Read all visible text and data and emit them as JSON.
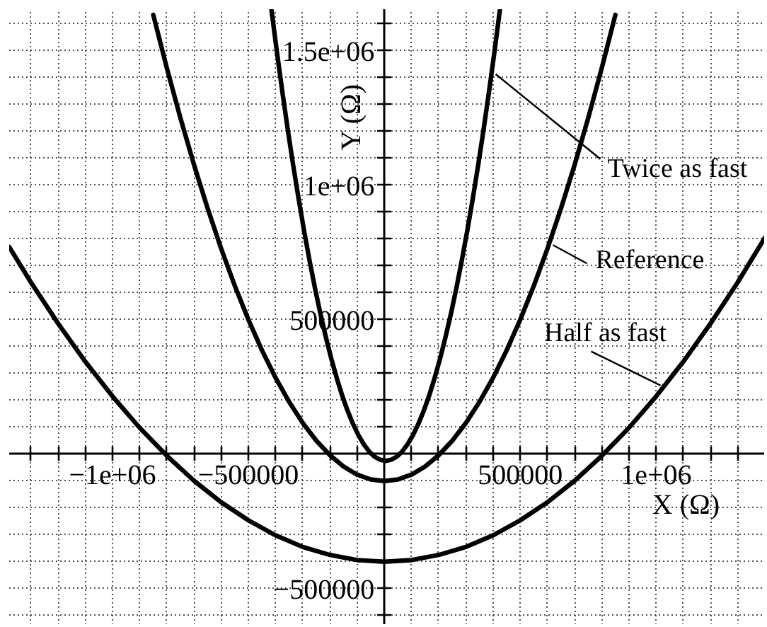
{
  "chart_data": {
    "type": "line",
    "xlabel": "X (Ω)",
    "ylabel": "Y (Ω)",
    "xlim": [
      -1380000,
      1400000
    ],
    "ylim": [
      -635000,
      1655000
    ],
    "xticks": [
      {
        "value": -1300000,
        "label": null
      },
      {
        "value": -1200000,
        "label": null
      },
      {
        "value": -1100000,
        "label": null
      },
      {
        "value": -1000000,
        "label": "−1e+06"
      },
      {
        "value": -900000,
        "label": null
      },
      {
        "value": -800000,
        "label": null
      },
      {
        "value": -700000,
        "label": null
      },
      {
        "value": -600000,
        "label": null
      },
      {
        "value": -500000,
        "label": "−500000"
      },
      {
        "value": -400000,
        "label": null
      },
      {
        "value": -300000,
        "label": null
      },
      {
        "value": -200000,
        "label": null
      },
      {
        "value": -100000,
        "label": null
      },
      {
        "value": 100000,
        "label": null
      },
      {
        "value": 200000,
        "label": null
      },
      {
        "value": 300000,
        "label": null
      },
      {
        "value": 400000,
        "label": null
      },
      500000,
      {
        "value": 600000,
        "label": null
      },
      {
        "value": 700000,
        "label": null
      },
      {
        "value": 800000,
        "label": null
      },
      {
        "value": 900000,
        "label": null
      },
      {
        "value": 1000000,
        "label": "1e+06"
      },
      {
        "value": 1100000,
        "label": null
      },
      {
        "value": 1200000,
        "label": null
      },
      {
        "value": 1300000,
        "label": null
      }
    ],
    "yticks": [
      {
        "value": -600000,
        "label": null
      },
      {
        "value": -500000,
        "label": "−500000"
      },
      {
        "value": -400000,
        "label": null
      },
      {
        "value": -300000,
        "label": null
      },
      {
        "value": -200000,
        "label": null
      },
      {
        "value": -100000,
        "label": null
      },
      {
        "value": 100000,
        "label": null
      },
      {
        "value": 200000,
        "label": null
      },
      {
        "value": 300000,
        "label": null
      },
      {
        "value": 400000,
        "label": null
      },
      500000,
      {
        "value": 600000,
        "label": null
      },
      {
        "value": 700000,
        "label": null
      },
      {
        "value": 800000,
        "label": null
      },
      {
        "value": 900000,
        "label": null
      },
      {
        "value": 1000000,
        "label": "1e+06"
      },
      {
        "value": 1100000,
        "label": null
      },
      {
        "value": 1200000,
        "label": null
      },
      {
        "value": 1300000,
        "label": null
      },
      {
        "value": 1400000,
        "label": null
      },
      {
        "value": 1500000,
        "label": "1.5e+06"
      },
      {
        "value": 1600000,
        "label": null
      }
    ],
    "grid": true,
    "series": [
      {
        "name": "Twice as fast",
        "color": "#000000",
        "x": [
          -415000,
          -395000,
          -375000,
          -355000,
          -335000,
          -315000,
          -295000,
          -275000,
          -255000,
          -235000,
          -215000,
          -195000,
          -175000,
          -155000,
          -135000,
          -115000,
          -95000,
          -75000,
          -55000,
          -35000,
          -15000,
          5000,
          25000,
          45000,
          65000,
          85000,
          105000,
          125000,
          145000,
          165000,
          185000,
          205000,
          225000,
          245000,
          265000,
          285000,
          305000,
          325000,
          345000,
          365000,
          385000,
          405000,
          425000
        ],
        "values": [
          1651000,
          1495000,
          1347000,
          1206000,
          1073000,
          948000,
          830000,
          720000,
          617000,
          522000,
          435000,
          355000,
          283000,
          218000,
          161000,
          112000,
          70000,
          36000,
          9000,
          -10000,
          -21000,
          -25000,
          -21000,
          -10000,
          9000,
          36000,
          70000,
          112000,
          161000,
          218000,
          283000,
          355000,
          435000,
          522000,
          617000,
          720000,
          830000,
          948000,
          1073000,
          1206000,
          1347000,
          1495000,
          1651000
        ]
      },
      {
        "name": "Reference",
        "color": "#000000",
        "x": [
          -850000,
          -800000,
          -750000,
          -700000,
          -650000,
          -600000,
          -550000,
          -500000,
          -450000,
          -400000,
          -350000,
          -300000,
          -250000,
          -200000,
          -150000,
          -100000,
          -50000,
          0,
          50000,
          100000,
          150000,
          200000,
          250000,
          300000,
          350000,
          400000,
          450000,
          500000,
          550000,
          600000,
          650000,
          700000,
          750000,
          800000,
          850000
        ],
        "values": [
          1634000,
          1436000,
          1250000,
          1076000,
          914000,
          764000,
          626000,
          500000,
          386000,
          284000,
          194000,
          116000,
          50000,
          -4000,
          -46000,
          -76000,
          -94000,
          -100000,
          -94000,
          -76000,
          -46000,
          -4000,
          50000,
          116000,
          194000,
          284000,
          386000,
          500000,
          626000,
          764000,
          914000,
          1076000,
          1250000,
          1436000,
          1634000
        ]
      },
      {
        "name": "Half as fast",
        "color": "#000000",
        "x": [
          -1380000,
          -1300000,
          -1200000,
          -1100000,
          -1000000,
          -900000,
          -800000,
          -700000,
          -600000,
          -500000,
          -400000,
          -300000,
          -200000,
          -100000,
          0,
          100000,
          200000,
          300000,
          400000,
          500000,
          600000,
          700000,
          800000,
          900000,
          1000000,
          1100000,
          1200000,
          1300000,
          1400000
        ],
        "values": [
          771000,
          639000,
          486000,
          344000,
          215000,
          98000,
          -6000,
          -99000,
          -179000,
          -246000,
          -302000,
          -345000,
          -375000,
          -394000,
          -400000,
          -394000,
          -375000,
          -345000,
          -302000,
          -246000,
          -179000,
          -99000,
          -6000,
          98000,
          215000,
          344000,
          486000,
          639000,
          805000
        ]
      }
    ]
  }
}
